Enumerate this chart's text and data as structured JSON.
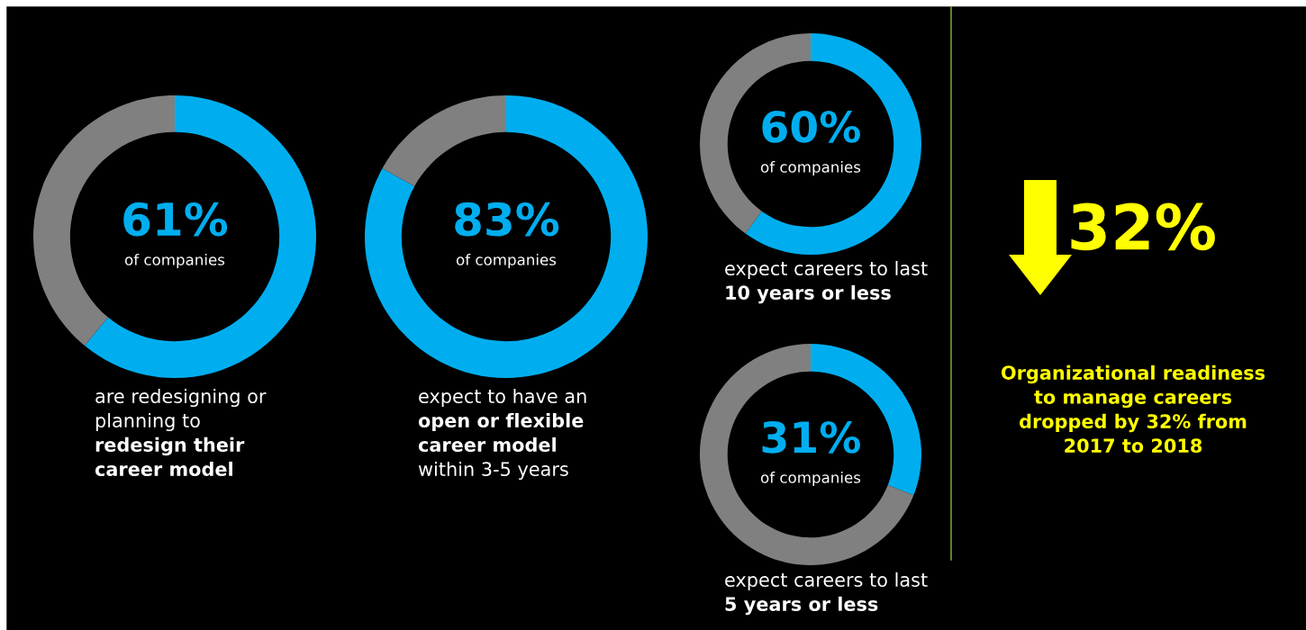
{
  "chart_data": [
    {
      "type": "donut",
      "categories": [
        null,
        null
      ],
      "values": [
        61,
        39
      ],
      "colors": [
        "#00aeef",
        "#808080"
      ],
      "value_labels": [
        "61%",
        null
      ],
      "annotations": [
        "of companies",
        "are redesigning or planning to",
        "redesign their career model"
      ]
    },
    {
      "type": "donut",
      "categories": [
        null,
        null
      ],
      "values": [
        83,
        17
      ],
      "colors": [
        "#00aeef",
        "#808080"
      ],
      "value_labels": [
        "83%",
        null
      ],
      "annotations": [
        "of companies",
        "expect to have an",
        "open or flexible career model",
        "within 3-5 years"
      ]
    },
    {
      "type": "donut",
      "categories": [
        null,
        null
      ],
      "values": [
        60,
        40
      ],
      "colors": [
        "#00aeef",
        "#808080"
      ],
      "value_labels": [
        "60%",
        null
      ],
      "annotations": [
        "of companies",
        "expect careers to last",
        "10 years or less"
      ]
    },
    {
      "type": "donut",
      "categories": [
        null,
        null
      ],
      "values": [
        31,
        69
      ],
      "colors": [
        "#00aeef",
        "#808080"
      ],
      "value_labels": [
        "31%",
        null
      ],
      "annotations": [
        "of companies",
        "expect careers to last",
        "5 years or less"
      ]
    },
    {
      "type": "other",
      "annotations": [
        "32%",
        "Organizational readiness to manage careers dropped by 32% from 2017 to 2018"
      ]
    }
  ]
}
